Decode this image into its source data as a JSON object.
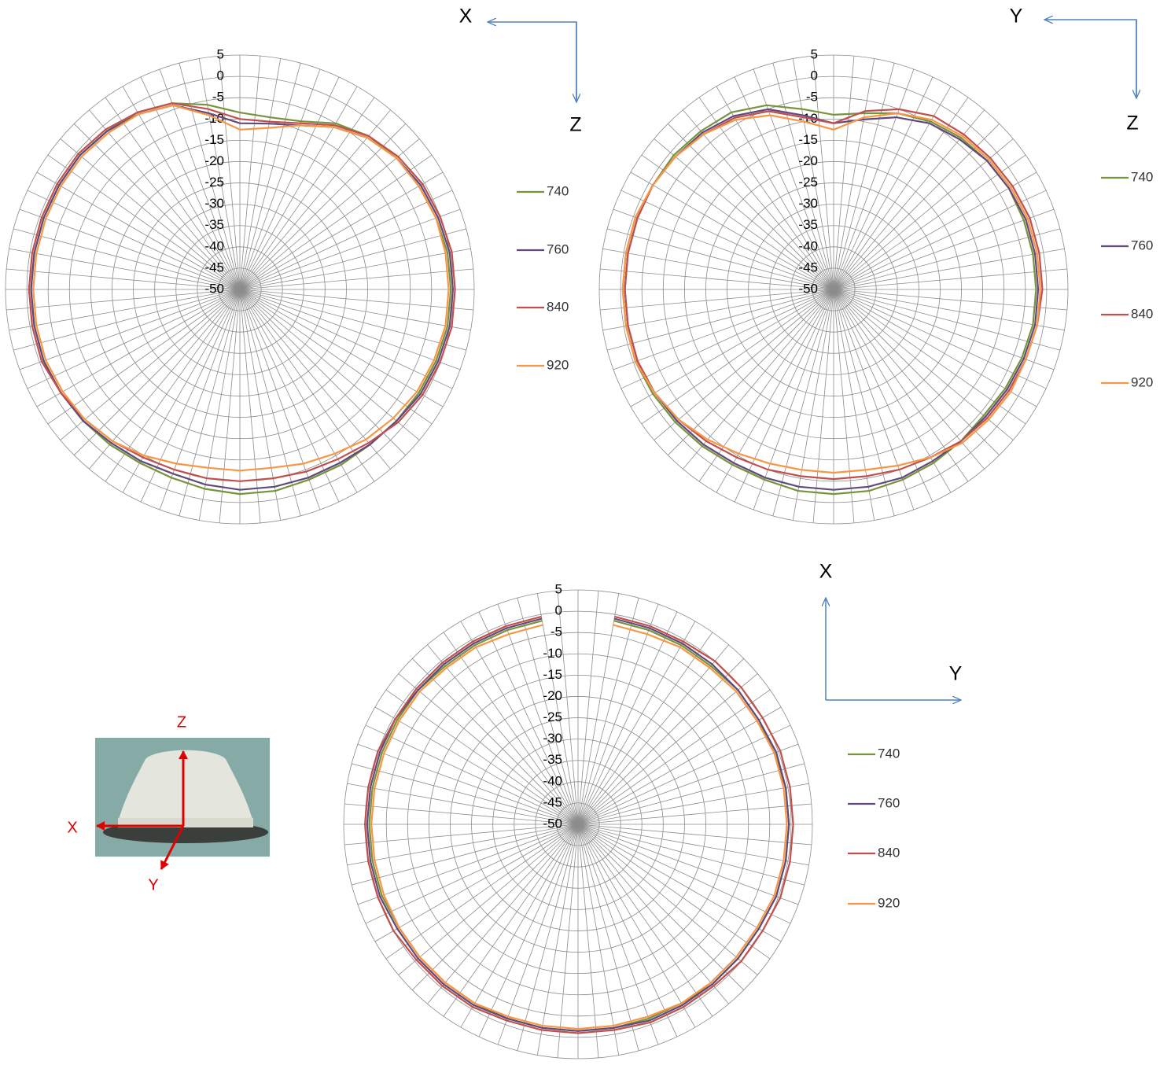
{
  "chart_data": [
    {
      "type": "polar",
      "axis_labels": [
        "X",
        "Z"
      ],
      "ylim": [
        -50,
        5
      ],
      "yticks": [
        5,
        0,
        -5,
        -10,
        -15,
        -20,
        -25,
        -30,
        -35,
        -40,
        -45,
        -50
      ],
      "grid": true,
      "legend": "right",
      "series": [
        {
          "name": "740",
          "color": "#77933c",
          "values": [
            -8.5,
            -9,
            -8,
            -5,
            -3,
            -2,
            -1.5,
            -1,
            -0.5,
            -0.5,
            -0.5,
            -1,
            -1.5,
            -2,
            -2.5,
            -2.5,
            -2.5,
            -2,
            -2,
            -2.5,
            -3,
            -3,
            -2.5,
            -2,
            -1.5,
            -1,
            -1,
            -1,
            -1,
            -1,
            -1,
            -1,
            -1.5,
            -2,
            -3.5,
            -6
          ]
        },
        {
          "name": "760",
          "color": "#604a7b",
          "values": [
            -11,
            -10.5,
            -9,
            -6,
            -3.5,
            -2,
            -1,
            -0.5,
            0,
            0,
            0,
            -0.5,
            -1,
            -2,
            -2.5,
            -3,
            -3,
            -3,
            -3,
            -3.5,
            -4,
            -3.5,
            -3,
            -2,
            -1.5,
            -1,
            -1,
            -1,
            -1,
            -1,
            -1,
            -1,
            -1.5,
            -2.5,
            -4,
            -8
          ]
        },
        {
          "name": "840",
          "color": "#c0504d",
          "values": [
            -10,
            -10,
            -8.5,
            -5.5,
            -3,
            -1.5,
            -0.5,
            0,
            0.5,
            0.5,
            0.5,
            0,
            -0.5,
            -1.5,
            -3,
            -4,
            -4.5,
            -5,
            -5,
            -5,
            -5,
            -4.5,
            -3.5,
            -2.5,
            -1.5,
            -0.5,
            -0.5,
            -0.5,
            -0.5,
            -0.5,
            -0.5,
            -0.5,
            -1,
            -2,
            -3.5,
            -7
          ]
        },
        {
          "name": "920",
          "color": "#f79646",
          "values": [
            -12.5,
            -11.5,
            -9,
            -6,
            -3.5,
            -2,
            -1.5,
            -1,
            -1,
            -1,
            -1,
            -1.5,
            -2,
            -3,
            -4,
            -5.5,
            -6.5,
            -7.5,
            -7.5,
            -7.5,
            -6.5,
            -5,
            -3.5,
            -2.5,
            -2,
            -1.5,
            -1.5,
            -1.5,
            -1.5,
            -1.5,
            -1.5,
            -1.5,
            -2,
            -2.5,
            -4,
            -8.5
          ]
        }
      ]
    },
    {
      "type": "polar",
      "axis_labels": [
        "Y",
        "Z"
      ],
      "ylim": [
        -50,
        5
      ],
      "yticks": [
        5,
        0,
        -5,
        -10,
        -15,
        -20,
        -25,
        -30,
        -35,
        -40,
        -45,
        -50
      ],
      "grid": true,
      "legend": "right",
      "series": [
        {
          "name": "740",
          "color": "#77933c",
          "values": [
            -9,
            -8,
            -6,
            -4.5,
            -3.5,
            -3,
            -2.5,
            -2.5,
            -2.5,
            -2.5,
            -2.5,
            -3,
            -3.5,
            -4,
            -3.5,
            -3,
            -2.5,
            -2,
            -2,
            -2,
            -2.5,
            -2.5,
            -2,
            -1.5,
            -1,
            -0.5,
            -0.5,
            -0.5,
            -0.5,
            -0.5,
            -1,
            -1,
            -1.5,
            -2,
            -4,
            -7
          ]
        },
        {
          "name": "760",
          "color": "#604a7b",
          "values": [
            -11,
            -9.5,
            -7,
            -5,
            -4,
            -3,
            -2.5,
            -2,
            -2,
            -2,
            -2,
            -2.5,
            -3,
            -3.5,
            -3.5,
            -3.5,
            -3,
            -3,
            -3,
            -3,
            -3,
            -3,
            -2.5,
            -2,
            -1.5,
            -1,
            -1,
            -1,
            -1,
            -1,
            -1,
            -1.5,
            -2,
            -3,
            -5,
            -8.5
          ]
        },
        {
          "name": "840",
          "color": "#c0504d",
          "values": [
            -11,
            -7.5,
            -5,
            -3,
            -2.5,
            -2,
            -1.5,
            -1,
            -1,
            -1,
            -1.5,
            -2,
            -2.5,
            -3,
            -3.5,
            -4.5,
            -5,
            -5.5,
            -5.5,
            -5.5,
            -5,
            -4.5,
            -3.5,
            -2.5,
            -1.5,
            -1,
            -1,
            -1,
            -1,
            -1,
            -1,
            -1.5,
            -2.5,
            -3.5,
            -5.5,
            -9
          ]
        },
        {
          "name": "920",
          "color": "#f79646",
          "values": [
            -12.5,
            -9,
            -6,
            -4,
            -3,
            -2.5,
            -2,
            -1.5,
            -1.5,
            -1.5,
            -1.5,
            -2,
            -2,
            -2.5,
            -3,
            -4.5,
            -6,
            -7,
            -7,
            -7,
            -6.5,
            -5.5,
            -4,
            -2.5,
            -1.5,
            -0.5,
            -0.5,
            -0.5,
            -0.5,
            -0.5,
            -1,
            -1.5,
            -2.5,
            -4,
            -6.5,
            -10
          ]
        }
      ]
    },
    {
      "type": "polar",
      "axis_labels": [
        "X",
        "Y"
      ],
      "ylim": [
        -50,
        5
      ],
      "yticks": [
        5,
        0,
        -5,
        -10,
        -15,
        -20,
        -25,
        -30,
        -35,
        -40,
        -45,
        -50
      ],
      "grid": true,
      "legend": "right",
      "series": [
        {
          "name": "740",
          "color": "#77933c",
          "values": [
            null,
            -1.5,
            -1.5,
            -1.5,
            -1.5,
            -1,
            -1,
            -1,
            -0.5,
            -0.5,
            -0.5,
            -0.5,
            -1,
            -1,
            -1,
            -1.5,
            -1.5,
            -1.5,
            -1.5,
            -1.5,
            -1.5,
            -1.5,
            -1.5,
            -1.5,
            -1.5,
            -1,
            -1,
            -1,
            -1,
            -1,
            -1,
            -1,
            -1.5,
            -1.5,
            -1.5,
            -1.5
          ]
        },
        {
          "name": "760",
          "color": "#604a7b",
          "values": [
            null,
            -1,
            -1,
            -1,
            -1,
            -1,
            -1,
            -0.5,
            -0.5,
            -0.5,
            -0.5,
            -0.5,
            -1,
            -1,
            -1,
            -1,
            -1,
            -1.5,
            -1.5,
            -1.5,
            -1.5,
            -1,
            -1,
            -1,
            -1,
            -0.5,
            -0.5,
            -0.5,
            -0.5,
            -0.5,
            -0.5,
            -1,
            -1,
            -1,
            -1,
            -1
          ]
        },
        {
          "name": "840",
          "color": "#c0504d",
          "values": [
            null,
            -0.5,
            -0.5,
            -0.5,
            0,
            0,
            0,
            0.5,
            0.5,
            0.5,
            0.5,
            0.5,
            0,
            0,
            -0.5,
            -0.5,
            -0.5,
            -1,
            -1,
            -1,
            -1,
            -0.5,
            -0.5,
            -0.5,
            0,
            0,
            0,
            0,
            0,
            0,
            -0.5,
            -0.5,
            -0.5,
            -0.5,
            -0.5,
            -0.5
          ]
        },
        {
          "name": "920",
          "color": "#f79646",
          "values": [
            null,
            -2.5,
            -2.5,
            -2,
            -2,
            -1.5,
            -1.5,
            -1,
            -1,
            -1,
            -1,
            -1,
            -1.5,
            -1.5,
            -1.5,
            -1.5,
            -2,
            -2,
            -2,
            -2,
            -2,
            -1.5,
            -1.5,
            -1.5,
            -1.5,
            -1.5,
            -1.5,
            -1.5,
            -1.5,
            -1.5,
            -1.5,
            -1.5,
            -2,
            -2,
            -2.5,
            -2.5
          ]
        }
      ]
    }
  ],
  "photo": {
    "labels": [
      "Z",
      "X",
      "Y"
    ]
  }
}
